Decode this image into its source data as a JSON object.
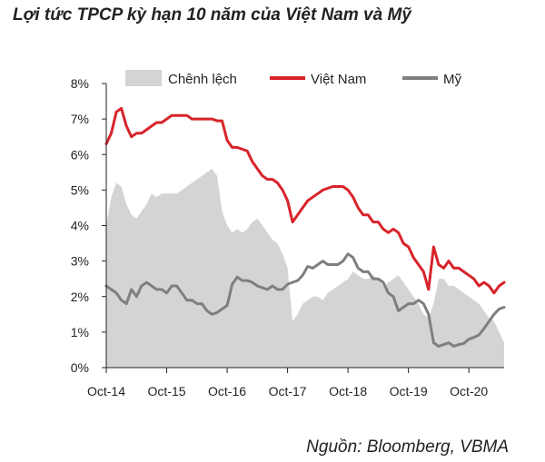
{
  "title": "Lợi tức TPCP kỳ hạn 10 năm của Việt Nam và Mỹ",
  "source": "Nguồn: Bloomberg, VBMA",
  "chart_data": {
    "type": "line",
    "title": "Lợi tức TPCP kỳ hạn 10 năm của Việt Nam và Mỹ",
    "xlabel": "",
    "ylabel": "",
    "ylim": [
      0,
      8
    ],
    "xlim": [
      "2014-10",
      "2021-05"
    ],
    "x_ticks": [
      "Oct-14",
      "Oct-15",
      "Oct-16",
      "Oct-17",
      "Oct-18",
      "Oct-19",
      "Oct-20"
    ],
    "y_ticks": [
      "0%",
      "1%",
      "2%",
      "3%",
      "4%",
      "5%",
      "6%",
      "7%",
      "8%"
    ],
    "grid": false,
    "legend_position": "top",
    "x": [
      "2014-10",
      "2014-11",
      "2014-12",
      "2015-01",
      "2015-02",
      "2015-03",
      "2015-04",
      "2015-05",
      "2015-06",
      "2015-07",
      "2015-08",
      "2015-09",
      "2015-10",
      "2015-11",
      "2015-12",
      "2016-01",
      "2016-02",
      "2016-03",
      "2016-04",
      "2016-05",
      "2016-06",
      "2016-07",
      "2016-08",
      "2016-09",
      "2016-10",
      "2016-11",
      "2016-12",
      "2017-01",
      "2017-02",
      "2017-03",
      "2017-04",
      "2017-05",
      "2017-06",
      "2017-07",
      "2017-08",
      "2017-09",
      "2017-10",
      "2017-11",
      "2017-12",
      "2018-01",
      "2018-02",
      "2018-03",
      "2018-04",
      "2018-05",
      "2018-06",
      "2018-07",
      "2018-08",
      "2018-09",
      "2018-10",
      "2018-11",
      "2018-12",
      "2019-01",
      "2019-02",
      "2019-03",
      "2019-04",
      "2019-05",
      "2019-06",
      "2019-07",
      "2019-08",
      "2019-09",
      "2019-10",
      "2019-11",
      "2019-12",
      "2020-01",
      "2020-02",
      "2020-03",
      "2020-04",
      "2020-05",
      "2020-06",
      "2020-07",
      "2020-08",
      "2020-09",
      "2020-10",
      "2020-11",
      "2020-12",
      "2021-01",
      "2021-02",
      "2021-03",
      "2021-04",
      "2021-05"
    ],
    "series": [
      {
        "name": "Chênh lệch",
        "kind": "area",
        "color": "#d4d4d4",
        "values": [
          4.0,
          4.8,
          5.2,
          5.1,
          4.6,
          4.3,
          4.2,
          4.4,
          4.6,
          4.9,
          4.8,
          4.9,
          4.9,
          4.9,
          4.9,
          5.0,
          5.1,
          5.2,
          5.3,
          5.4,
          5.5,
          5.6,
          5.4,
          4.4,
          4.0,
          3.8,
          3.9,
          3.8,
          3.9,
          4.1,
          4.2,
          4.0,
          3.8,
          3.6,
          3.5,
          3.2,
          2.8,
          1.3,
          1.5,
          1.8,
          1.9,
          2.0,
          2.0,
          1.9,
          2.1,
          2.2,
          2.3,
          2.4,
          2.5,
          2.7,
          2.6,
          2.5,
          2.5,
          2.6,
          2.5,
          2.3,
          2.4,
          2.5,
          2.6,
          2.4,
          2.2,
          2.0,
          1.8,
          1.5,
          1.4,
          1.8,
          2.5,
          2.5,
          2.3,
          2.3,
          2.2,
          2.1,
          2.0,
          1.9,
          1.8,
          1.6,
          1.4,
          1.3,
          1.0,
          0.7
        ]
      },
      {
        "name": "Việt Nam",
        "kind": "line",
        "color": "#d8232a",
        "values": [
          6.3,
          6.6,
          7.2,
          7.3,
          6.8,
          6.5,
          6.6,
          6.6,
          6.7,
          6.8,
          6.9,
          6.9,
          7.0,
          7.1,
          7.1,
          7.1,
          7.1,
          7.0,
          7.0,
          7.0,
          7.0,
          7.0,
          6.95,
          6.95,
          6.4,
          6.2,
          6.2,
          6.15,
          6.1,
          5.8,
          5.6,
          5.4,
          5.3,
          5.3,
          5.2,
          5.0,
          4.7,
          4.1,
          4.3,
          4.5,
          4.7,
          4.8,
          4.9,
          5.0,
          5.05,
          5.1,
          5.1,
          5.1,
          5.0,
          4.8,
          4.5,
          4.3,
          4.3,
          4.1,
          4.1,
          3.9,
          3.8,
          3.9,
          3.8,
          3.5,
          3.4,
          3.1,
          2.9,
          2.7,
          2.2,
          3.4,
          2.9,
          2.8,
          3.0,
          2.8,
          2.8,
          2.7,
          2.6,
          2.5,
          2.3,
          2.4,
          2.3,
          2.1,
          2.3,
          2.4
        ]
      },
      {
        "name": "Mỹ",
        "kind": "line",
        "color": "#7f7f7f",
        "values": [
          2.3,
          2.2,
          2.1,
          1.9,
          1.8,
          2.2,
          2.0,
          2.3,
          2.4,
          2.3,
          2.2,
          2.2,
          2.1,
          2.3,
          2.3,
          2.1,
          1.9,
          1.9,
          1.8,
          1.8,
          1.6,
          1.5,
          1.55,
          1.65,
          1.75,
          2.35,
          2.55,
          2.45,
          2.45,
          2.4,
          2.3,
          2.25,
          2.2,
          2.3,
          2.2,
          2.2,
          2.35,
          2.4,
          2.45,
          2.6,
          2.85,
          2.8,
          2.9,
          3.0,
          2.9,
          2.9,
          2.9,
          3.0,
          3.2,
          3.1,
          2.8,
          2.7,
          2.7,
          2.5,
          2.5,
          2.4,
          2.1,
          2.0,
          1.6,
          1.7,
          1.8,
          1.8,
          1.9,
          1.8,
          1.5,
          0.7,
          0.6,
          0.65,
          0.7,
          0.6,
          0.65,
          0.68,
          0.8,
          0.85,
          0.92,
          1.1,
          1.3,
          1.5,
          1.65,
          1.7
        ]
      }
    ]
  }
}
